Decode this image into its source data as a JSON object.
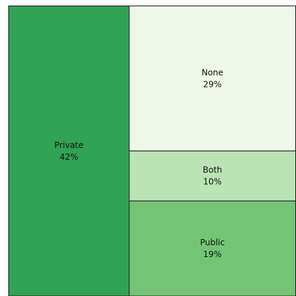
{
  "chart_data": {
    "type": "treemap",
    "categories": [
      "Private",
      "None",
      "Both",
      "Public"
    ],
    "values": [
      42,
      29,
      10,
      19
    ],
    "value_labels": [
      "42%",
      "29%",
      "10%",
      "19%"
    ],
    "colors": [
      "#31a354",
      "#edf8e9",
      "#bae4b3",
      "#74c476"
    ]
  }
}
